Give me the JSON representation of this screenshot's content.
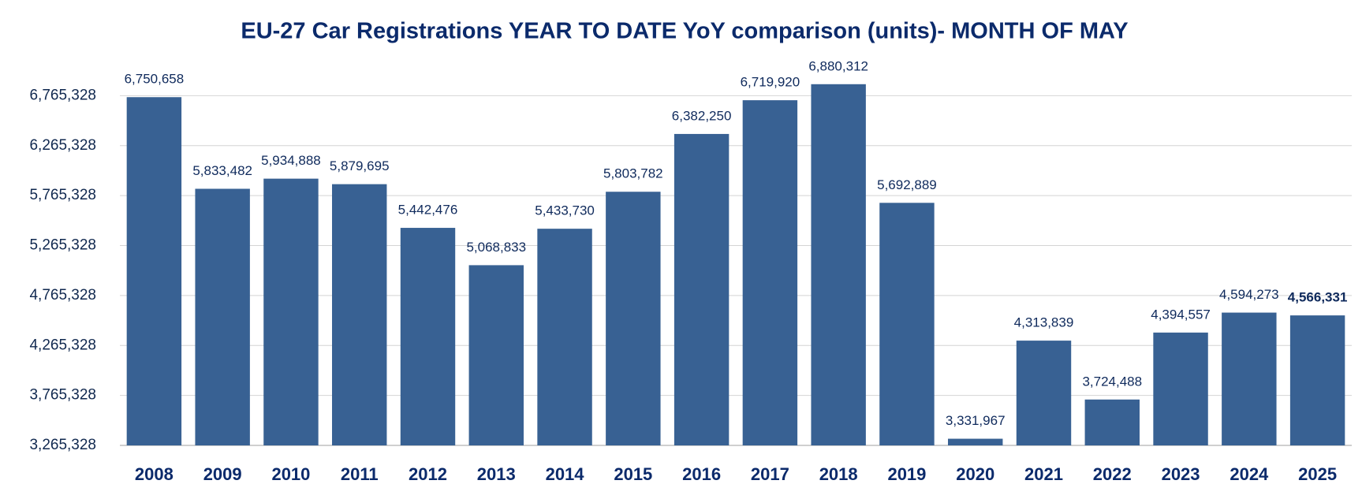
{
  "chart_data": {
    "type": "bar",
    "title": "EU-27 Car Registrations YEAR TO DATE YoY comparison (units)- MONTH OF MAY",
    "categories": [
      "2008",
      "2009",
      "2010",
      "2011",
      "2012",
      "2013",
      "2014",
      "2015",
      "2016",
      "2017",
      "2018",
      "2019",
      "2020",
      "2021",
      "2022",
      "2023",
      "2024",
      "2025"
    ],
    "values": [
      6750658,
      5833482,
      5934888,
      5879695,
      5442476,
      5068833,
      5433730,
      5803782,
      6382250,
      6719920,
      6880312,
      5692889,
      3331967,
      4313839,
      3724488,
      4394557,
      4594273,
      4566331
    ],
    "value_labels": [
      "6,750,658",
      "5,833,482",
      "5,934,888",
      "5,879,695",
      "5,442,476",
      "5,068,833",
      "5,433,730",
      "5,803,782",
      "6,382,250",
      "6,719,920",
      "6,880,312",
      "5,692,889",
      "3,331,967",
      "4,313,839",
      "3,724,488",
      "4,394,557",
      "4,594,273",
      "4,566,331"
    ],
    "color": "#386193",
    "ylim": [
      3265328,
      7265328
    ],
    "yticks": [
      {
        "value": 3265328,
        "label": "3,265,328"
      },
      {
        "value": 3765328,
        "label": "3,765,328"
      },
      {
        "value": 4265328,
        "label": "4,265,328"
      },
      {
        "value": 4765328,
        "label": "4,765,328"
      },
      {
        "value": 5265328,
        "label": "5,265,328"
      },
      {
        "value": 5765328,
        "label": "5,765,328"
      },
      {
        "value": 6265328,
        "label": "6,265,328"
      },
      {
        "value": 6765328,
        "label": "6,765,328"
      }
    ],
    "grid": true
  }
}
